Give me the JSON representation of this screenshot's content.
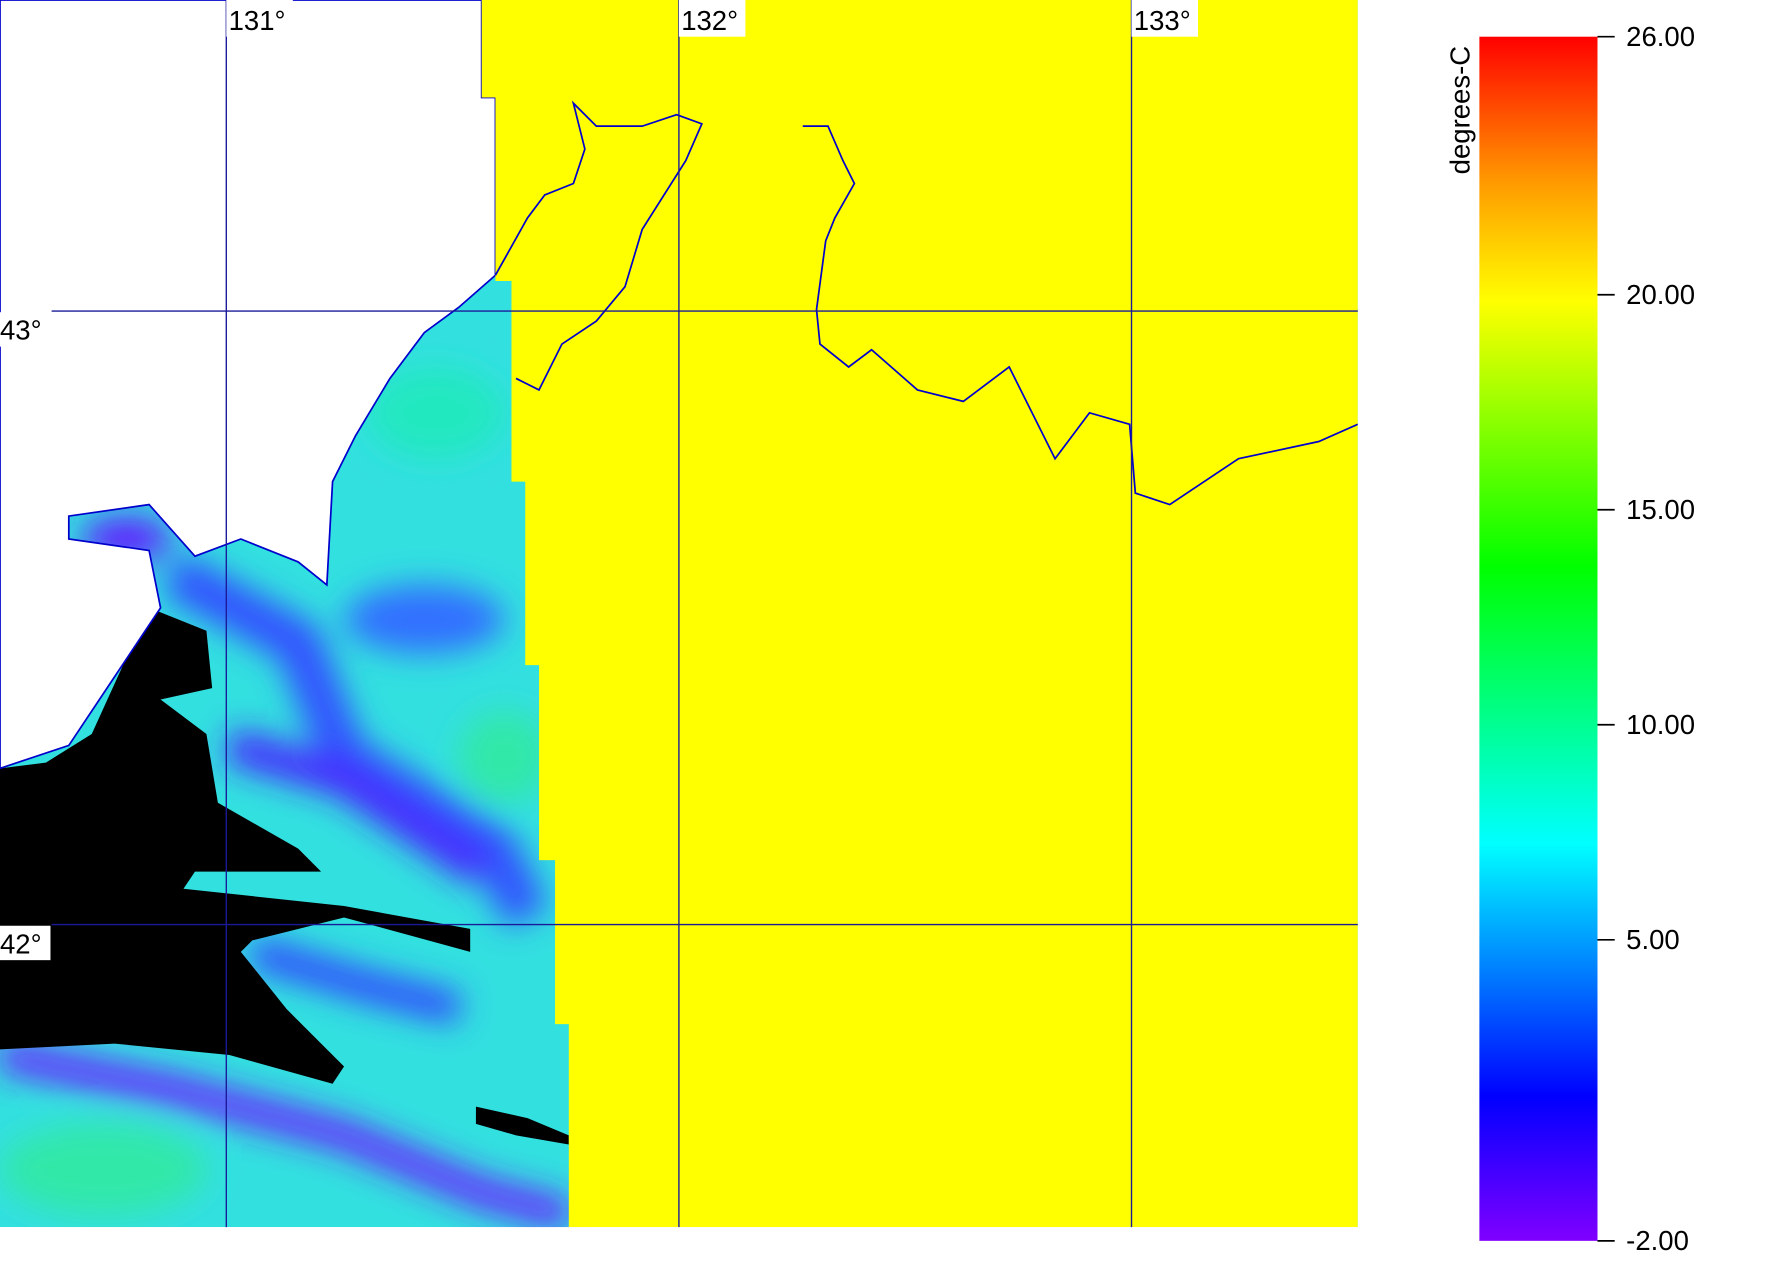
{
  "map": {
    "lon_range": [
      130.5,
      133.5
    ],
    "lat_range": [
      41.507,
      43.507
    ],
    "lon_ticks": [
      {
        "value": 131,
        "label": "131°"
      },
      {
        "value": 132,
        "label": "132°"
      },
      {
        "value": 133,
        "label": "133°"
      }
    ],
    "lat_ticks": [
      {
        "value": 43,
        "label": "43°"
      },
      {
        "value": 42,
        "label": "42°"
      }
    ],
    "colorbar": {
      "label": "degrees-C",
      "range": [
        -2,
        26
      ],
      "ticks": [
        {
          "value": -2,
          "label": "-2.00"
        },
        {
          "value": 5,
          "label": "5.00"
        },
        {
          "value": 10,
          "label": "10.00"
        },
        {
          "value": 15,
          "label": "15.00"
        },
        {
          "value": 20,
          "label": "20.00"
        },
        {
          "value": 26,
          "label": "26.00"
        }
      ]
    }
  }
}
